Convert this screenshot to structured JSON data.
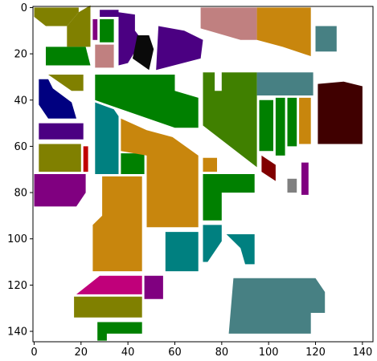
{
  "chart_data": {
    "type": "heatmap",
    "title": "",
    "xlabel": "",
    "ylabel": "",
    "xlim": [
      -0.5,
      144.5
    ],
    "ylim": [
      144.5,
      -0.5
    ],
    "x_ticks": [
      0,
      20,
      40,
      60,
      80,
      100,
      120,
      140
    ],
    "y_ticks": [
      0,
      20,
      40,
      60,
      80,
      100,
      120,
      140
    ],
    "x_tick_labels": [
      "0",
      "20",
      "40",
      "60",
      "80",
      "100",
      "120",
      "140"
    ],
    "y_tick_labels": [
      "0",
      "20",
      "40",
      "60",
      "80",
      "100",
      "120",
      "140"
    ],
    "grid": false,
    "colors": {
      "background": "#ffffff",
      "olive": "#808000",
      "green": "#008000",
      "purple": "#800080",
      "indigo": "#4b0082",
      "navy": "#000080",
      "teal": "#008080",
      "orange": "#c8860d",
      "rosybrown": "#c08080",
      "grayteal": "#478083",
      "black": "#0a0a0a",
      "darkred": "#400000",
      "red": "#c00000",
      "magenta": "#c0007a",
      "darkgreen": "#408000",
      "maroon": "#800000",
      "gray": "#808080"
    },
    "regions": [
      {
        "color": "olive",
        "poly": [
          [
            0,
            0
          ],
          [
            19,
            0
          ],
          [
            19,
            2
          ],
          [
            14,
            8
          ],
          [
            5,
            8
          ],
          [
            0,
            4
          ]
        ]
      },
      {
        "color": "olive",
        "poly": [
          [
            14,
            8
          ],
          [
            19,
            2
          ],
          [
            24,
            -1
          ],
          [
            24,
            17
          ],
          [
            14,
            17
          ]
        ]
      },
      {
        "color": "green",
        "poly": [
          [
            5,
            17
          ],
          [
            22,
            17
          ],
          [
            24,
            25
          ],
          [
            5,
            25
          ]
        ]
      },
      {
        "color": "purple",
        "poly": [
          [
            25,
            5
          ],
          [
            27,
            5
          ],
          [
            27,
            14
          ],
          [
            25,
            14
          ]
        ]
      },
      {
        "color": "green",
        "poly": [
          [
            28,
            5
          ],
          [
            34,
            5
          ],
          [
            34,
            15
          ],
          [
            28,
            15
          ]
        ]
      },
      {
        "color": "rosybrown",
        "poly": [
          [
            26,
            16
          ],
          [
            34,
            16
          ],
          [
            34,
            26
          ],
          [
            26,
            26
          ]
        ]
      },
      {
        "color": "indigo",
        "poly": [
          [
            28,
            1
          ],
          [
            36,
            1
          ],
          [
            36,
            4
          ],
          [
            28,
            4
          ]
        ]
      },
      {
        "color": "indigo",
        "poly": [
          [
            36,
            2
          ],
          [
            43,
            3
          ],
          [
            43,
            10
          ],
          [
            46,
            14
          ],
          [
            40,
            24
          ],
          [
            36,
            25
          ]
        ]
      },
      {
        "color": "black",
        "poly": [
          [
            44,
            12
          ],
          [
            49,
            12
          ],
          [
            51,
            18
          ],
          [
            49,
            27
          ],
          [
            42,
            22
          ]
        ]
      },
      {
        "color": "indigo",
        "poly": [
          [
            53,
            8
          ],
          [
            64,
            10
          ],
          [
            72,
            14
          ],
          [
            71,
            22
          ],
          [
            52,
            27
          ]
        ]
      },
      {
        "color": "rosybrown",
        "poly": [
          [
            71,
            0
          ],
          [
            95,
            0
          ],
          [
            95,
            14
          ],
          [
            88,
            14
          ],
          [
            71,
            9
          ]
        ]
      },
      {
        "color": "orange",
        "poly": [
          [
            95,
            0
          ],
          [
            118,
            0
          ],
          [
            118,
            21
          ],
          [
            106,
            17
          ],
          [
            95,
            14
          ]
        ]
      },
      {
        "color": "grayteal",
        "poly": [
          [
            120,
            8
          ],
          [
            129,
            8
          ],
          [
            129,
            19
          ],
          [
            120,
            19
          ]
        ]
      },
      {
        "color": "navy",
        "poly": [
          [
            2,
            31
          ],
          [
            6,
            31
          ],
          [
            8,
            35
          ],
          [
            16,
            41
          ],
          [
            18,
            48
          ],
          [
            6,
            48
          ],
          [
            2,
            42
          ]
        ]
      },
      {
        "color": "olive",
        "poly": [
          [
            6,
            29
          ],
          [
            21,
            29
          ],
          [
            21,
            36
          ],
          [
            16,
            36
          ]
        ]
      },
      {
        "color": "indigo",
        "poly": [
          [
            2,
            50
          ],
          [
            21,
            50
          ],
          [
            21,
            57
          ],
          [
            2,
            57
          ]
        ]
      },
      {
        "color": "olive",
        "poly": [
          [
            2,
            59
          ],
          [
            20,
            59
          ],
          [
            20,
            71
          ],
          [
            2,
            71
          ]
        ]
      },
      {
        "color": "red",
        "poly": [
          [
            21,
            60
          ],
          [
            23,
            60
          ],
          [
            23,
            71
          ],
          [
            21,
            71
          ]
        ]
      },
      {
        "color": "green",
        "poly": [
          [
            26,
            29
          ],
          [
            60,
            29
          ],
          [
            60,
            36
          ],
          [
            70,
            39
          ],
          [
            70,
            52
          ],
          [
            60,
            52
          ],
          [
            26,
            40
          ]
        ]
      },
      {
        "color": "teal",
        "poly": [
          [
            26,
            41
          ],
          [
            34,
            44
          ],
          [
            36,
            47
          ],
          [
            36,
            72
          ],
          [
            26,
            72
          ]
        ]
      },
      {
        "color": "green",
        "poly": [
          [
            37,
            63
          ],
          [
            47,
            63
          ],
          [
            47,
            72
          ],
          [
            37,
            72
          ]
        ]
      },
      {
        "color": "orange",
        "poly": [
          [
            37,
            48
          ],
          [
            48,
            53
          ],
          [
            59,
            56
          ],
          [
            70,
            64
          ],
          [
            70,
            95
          ],
          [
            48,
            95
          ],
          [
            48,
            64
          ],
          [
            37,
            62
          ]
        ]
      },
      {
        "color": "orange",
        "poly": [
          [
            29,
            73
          ],
          [
            46,
            73
          ],
          [
            46,
            114
          ],
          [
            25,
            114
          ],
          [
            25,
            94
          ],
          [
            29,
            90
          ]
        ]
      },
      {
        "color": "teal",
        "poly": [
          [
            56,
            97
          ],
          [
            70,
            97
          ],
          [
            70,
            114
          ],
          [
            56,
            114
          ]
        ]
      },
      {
        "color": "purple",
        "poly": [
          [
            0,
            72
          ],
          [
            22,
            72
          ],
          [
            22,
            80
          ],
          [
            18,
            86
          ],
          [
            0,
            86
          ]
        ]
      },
      {
        "color": "darkgreen",
        "poly": [
          [
            72,
            28
          ],
          [
            77,
            28
          ],
          [
            77,
            36
          ],
          [
            80,
            36
          ],
          [
            80,
            28
          ],
          [
            95,
            28
          ],
          [
            95,
            69
          ],
          [
            72,
            51
          ]
        ]
      },
      {
        "color": "orange",
        "poly": [
          [
            72,
            65
          ],
          [
            78,
            65
          ],
          [
            78,
            71
          ],
          [
            72,
            71
          ]
        ]
      },
      {
        "color": "green",
        "poly": [
          [
            72,
            72
          ],
          [
            94,
            72
          ],
          [
            94,
            80
          ],
          [
            80,
            80
          ],
          [
            80,
            92
          ],
          [
            72,
            92
          ]
        ]
      },
      {
        "color": "teal",
        "poly": [
          [
            72,
            94
          ],
          [
            80,
            94
          ],
          [
            80,
            101
          ],
          [
            74,
            110
          ],
          [
            72,
            110
          ]
        ]
      },
      {
        "color": "teal",
        "poly": [
          [
            82,
            98
          ],
          [
            94,
            98
          ],
          [
            94,
            111
          ],
          [
            90,
            111
          ],
          [
            88,
            104
          ]
        ]
      },
      {
        "color": "grayteal",
        "poly": [
          [
            95,
            28
          ],
          [
            119,
            28
          ],
          [
            119,
            38
          ],
          [
            95,
            38
          ]
        ]
      },
      {
        "color": "green",
        "poly": [
          [
            96,
            40
          ],
          [
            102,
            40
          ],
          [
            102,
            62
          ],
          [
            96,
            62
          ]
        ]
      },
      {
        "color": "green",
        "poly": [
          [
            103,
            39
          ],
          [
            107,
            39
          ],
          [
            107,
            64
          ],
          [
            103,
            64
          ]
        ]
      },
      {
        "color": "green",
        "poly": [
          [
            108,
            39
          ],
          [
            112,
            39
          ],
          [
            112,
            60
          ],
          [
            108,
            60
          ]
        ]
      },
      {
        "color": "orange",
        "poly": [
          [
            113,
            39
          ],
          [
            118,
            39
          ],
          [
            118,
            59
          ],
          [
            113,
            59
          ]
        ]
      },
      {
        "color": "darkred",
        "poly": [
          [
            121,
            33
          ],
          [
            132,
            32
          ],
          [
            140,
            34
          ],
          [
            140,
            59
          ],
          [
            121,
            59
          ]
        ]
      },
      {
        "color": "maroon",
        "poly": [
          [
            97,
            64
          ],
          [
            103,
            68
          ],
          [
            103,
            75
          ],
          [
            97,
            71
          ]
        ]
      },
      {
        "color": "purple",
        "poly": [
          [
            114,
            67
          ],
          [
            117,
            67
          ],
          [
            117,
            81
          ],
          [
            114,
            81
          ]
        ]
      },
      {
        "color": "gray",
        "poly": [
          [
            108,
            74
          ],
          [
            112,
            74
          ],
          [
            112,
            80
          ],
          [
            108,
            80
          ]
        ]
      },
      {
        "color": "grayteal",
        "poly": [
          [
            85,
            117
          ],
          [
            120,
            117
          ],
          [
            124,
            123
          ],
          [
            124,
            132
          ],
          [
            118,
            132
          ],
          [
            118,
            141
          ],
          [
            83,
            141
          ]
        ]
      },
      {
        "color": "magenta",
        "poly": [
          [
            28,
            116
          ],
          [
            46,
            116
          ],
          [
            46,
            124
          ],
          [
            18,
            124
          ]
        ]
      },
      {
        "color": "purple",
        "poly": [
          [
            47,
            116
          ],
          [
            55,
            116
          ],
          [
            55,
            126
          ],
          [
            47,
            126
          ]
        ]
      },
      {
        "color": "olive",
        "poly": [
          [
            17,
            125
          ],
          [
            46,
            125
          ],
          [
            46,
            134
          ],
          [
            17,
            134
          ]
        ]
      },
      {
        "color": "green",
        "poly": [
          [
            27,
            136
          ],
          [
            46,
            136
          ],
          [
            46,
            141
          ],
          [
            31,
            141
          ],
          [
            31,
            144
          ],
          [
            27,
            144
          ]
        ]
      }
    ]
  }
}
